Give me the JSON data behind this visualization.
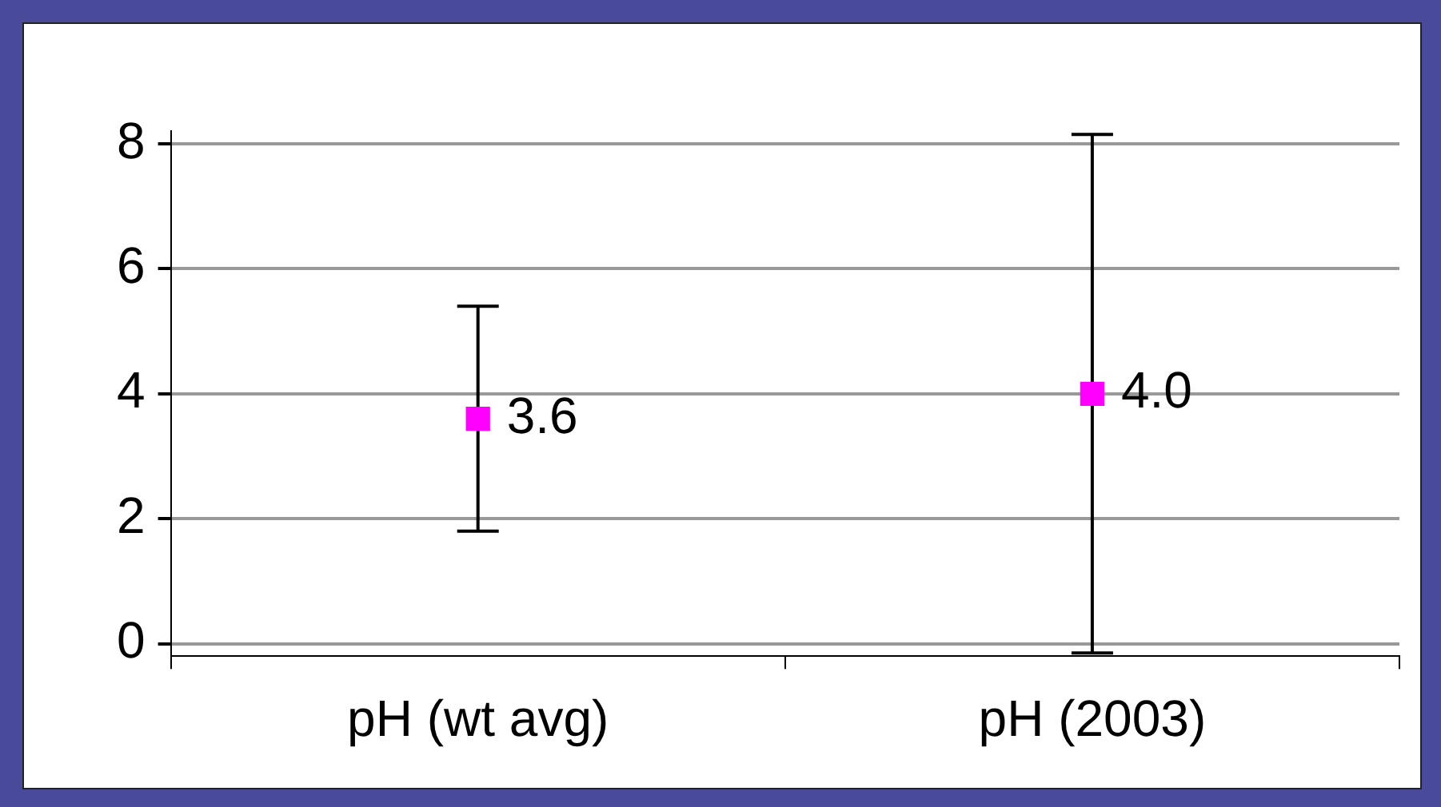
{
  "chart_data": {
    "type": "scatter",
    "categories": [
      "pH (wt avg)",
      "pH (2003)"
    ],
    "series": [
      {
        "color": "#ff00ff",
        "values": [
          3.6,
          4.0
        ],
        "errors": [
          1.8,
          4.15
        ],
        "value_labels": [
          "3.6",
          "4.0"
        ]
      }
    ],
    "ylim": [
      -0.2,
      8.2
    ],
    "yticks": [
      0,
      2,
      4,
      6,
      8
    ],
    "grid": "y",
    "legend": false,
    "marker": "square"
  }
}
